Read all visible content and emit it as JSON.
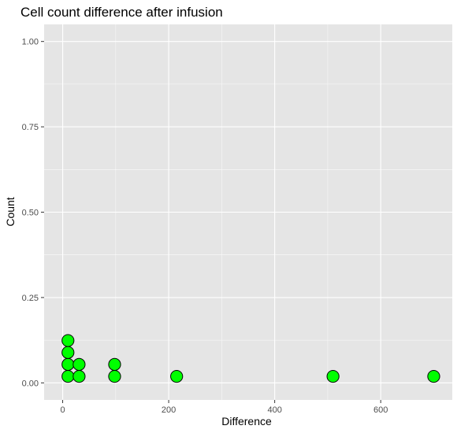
{
  "chart_data": {
    "type": "scatter",
    "title": "Cell count difference after infusion",
    "xlabel": "Difference",
    "ylabel": "Count",
    "xlim": [
      -35,
      735
    ],
    "ylim": [
      -0.05,
      1.05
    ],
    "x_ticks": [
      0,
      200,
      400,
      600
    ],
    "x_tick_labels": [
      "0",
      "200",
      "400",
      "600"
    ],
    "y_ticks": [
      0,
      0.25,
      0.5,
      0.75,
      1
    ],
    "y_tick_labels": [
      "0.00",
      "0.25",
      "0.50",
      "0.75",
      "1.00"
    ],
    "grid": true,
    "points": [
      {
        "x": 10,
        "y": 0.019
      },
      {
        "x": 10,
        "y": 0.054
      },
      {
        "x": 10,
        "y": 0.089
      },
      {
        "x": 10,
        "y": 0.124
      },
      {
        "x": 31,
        "y": 0.019
      },
      {
        "x": 31,
        "y": 0.054
      },
      {
        "x": 98,
        "y": 0.019
      },
      {
        "x": 98,
        "y": 0.054
      },
      {
        "x": 215,
        "y": 0.019
      },
      {
        "x": 510,
        "y": 0.019
      },
      {
        "x": 700,
        "y": 0.019
      }
    ]
  },
  "colors": {
    "panel_background": "#e5e5e5",
    "gridline": "#ffffff",
    "point_fill": "#00ff00",
    "point_stroke": "#000000"
  }
}
